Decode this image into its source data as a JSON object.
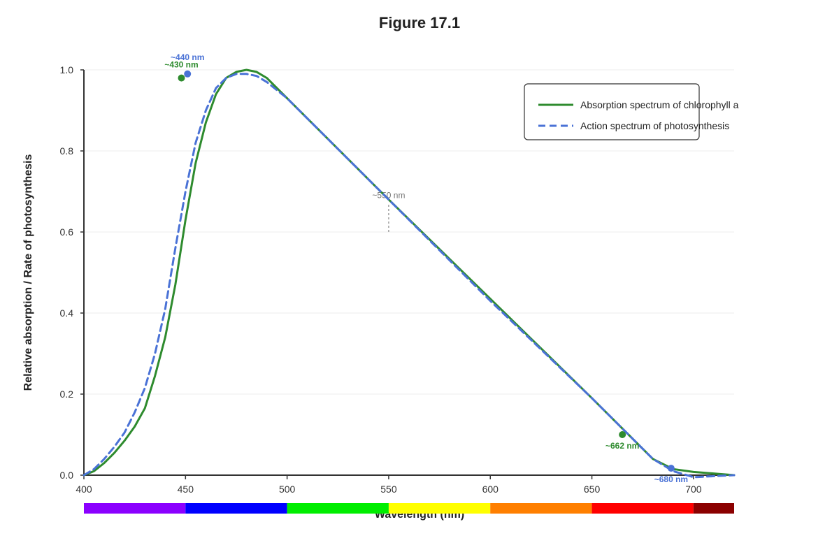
{
  "chart_data": {
    "type": "line",
    "title": "Figure 17.1",
    "xlabel": "Wavelength (nm)",
    "ylabel": "Relative absorption / Rate of photosynthesis",
    "xlim": [
      400,
      720
    ],
    "ylim": [
      0,
      1.0
    ],
    "x_ticks": [
      "400",
      "450",
      "500",
      "550",
      "600",
      "650",
      "700"
    ],
    "y_ticks": [
      "0.0",
      "0.2",
      "0.4",
      "0.6",
      "0.8",
      "1.0"
    ],
    "grid": true,
    "legend_position": "top-right",
    "series": [
      {
        "name": "Absorption spectrum of chlorophyll a",
        "color": "#2e8b2e",
        "style": "solid",
        "x": [
          400,
          405,
          410,
          415,
          420,
          425,
          430,
          435,
          440,
          445,
          450,
          455,
          460,
          465,
          470,
          475,
          480,
          485,
          490,
          500,
          550,
          600,
          650,
          680,
          690,
          700,
          720
        ],
        "y": [
          0.0,
          0.01,
          0.03,
          0.055,
          0.085,
          0.12,
          0.165,
          0.245,
          0.34,
          0.47,
          0.63,
          0.77,
          0.87,
          0.94,
          0.98,
          0.995,
          1.0,
          0.995,
          0.98,
          0.93,
          0.68,
          0.435,
          0.19,
          0.04,
          0.015,
          0.008,
          0.0
        ]
      },
      {
        "name": "Action spectrum of photosynthesis",
        "color": "#4a72d6",
        "style": "dashed",
        "x": [
          400,
          405,
          410,
          415,
          420,
          425,
          430,
          435,
          440,
          445,
          450,
          455,
          460,
          465,
          470,
          475,
          480,
          485,
          490,
          500,
          550,
          600,
          650,
          680,
          690,
          700,
          720
        ],
        "y": [
          0.0,
          0.015,
          0.04,
          0.07,
          0.105,
          0.155,
          0.215,
          0.3,
          0.41,
          0.56,
          0.7,
          0.82,
          0.9,
          0.955,
          0.98,
          0.99,
          0.99,
          0.985,
          0.97,
          0.93,
          0.68,
          0.43,
          0.19,
          0.04,
          0.01,
          -0.005,
          0.0
        ]
      }
    ],
    "markers": [
      {
        "x": 448,
        "y": 0.98,
        "label": "~430 nm",
        "color": "#2e8b2e",
        "label_pos": "above"
      },
      {
        "x": 451,
        "y": 0.99,
        "label": "~440 nm",
        "color": "#4a72d6",
        "label_pos": "above"
      },
      {
        "x": 665,
        "y": 0.1,
        "label": "~662 nm",
        "color": "#2e8b2e",
        "label_pos": "below"
      },
      {
        "x": 689,
        "y": 0.017,
        "label": "~680 nm",
        "color": "#4a72d6",
        "label_pos": "below"
      }
    ],
    "reference_line": {
      "x": 550,
      "y_from": 0.6,
      "y_to": 0.67,
      "label": "~550 nm"
    },
    "spectrum_bar": [
      {
        "from": 400,
        "to": 450,
        "color": "#8b00ff"
      },
      {
        "from": 450,
        "to": 500,
        "color": "#0000ff"
      },
      {
        "from": 500,
        "to": 550,
        "color": "#00ee00"
      },
      {
        "from": 550,
        "to": 600,
        "color": "#ffff00"
      },
      {
        "from": 600,
        "to": 650,
        "color": "#ff7f00"
      },
      {
        "from": 650,
        "to": 700,
        "color": "#ff0000"
      },
      {
        "from": 700,
        "to": 720,
        "color": "#8b0000"
      }
    ]
  }
}
